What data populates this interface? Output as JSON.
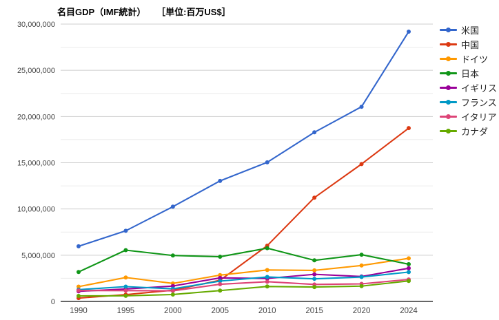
{
  "chart_data": {
    "type": "line",
    "title": "名目GDP（IMF統計）",
    "unit_label": "［単位:百万US$］",
    "xlabel": "",
    "ylabel": "",
    "categories": [
      "1990",
      "1995",
      "2000",
      "2005",
      "2010",
      "2015",
      "2020",
      "2024"
    ],
    "series": [
      {
        "name": "米国",
        "color": "#3366CC",
        "values": [
          5963140,
          7639750,
          10250950,
          13039200,
          15049010,
          18295020,
          21060450,
          29184890
        ]
      },
      {
        "name": "中国",
        "color": "#DC3912",
        "values": [
          360860,
          734550,
          1211350,
          2286460,
          6033830,
          11226190,
          14862560,
          18748010
        ]
      },
      {
        "name": "ドイツ",
        "color": "#FF9900",
        "values": [
          1598640,
          2585790,
          1947980,
          2845730,
          3399670,
          3357930,
          3887730,
          4659930
        ]
      },
      {
        "name": "日本",
        "color": "#109618",
        "values": [
          3185900,
          5545570,
          4968360,
          4834070,
          5759070,
          4444930,
          5055590,
          4026210
        ]
      },
      {
        "name": "イギリス",
        "color": "#990099",
        "values": [
          1093170,
          1345100,
          1663200,
          2543180,
          2485480,
          2932030,
          2697090,
          3587550
        ]
      },
      {
        "name": "フランス",
        "color": "#0099C6",
        "values": [
          1275300,
          1601080,
          1362250,
          2196130,
          2645190,
          2442480,
          2639090,
          3174100
        ]
      },
      {
        "name": "イタリア",
        "color": "#DD4477",
        "values": [
          1181220,
          1171200,
          1146680,
          1857480,
          2134020,
          1836640,
          1897460,
          2376510
        ]
      },
      {
        "name": "カナダ",
        "color": "#66AA00",
        "values": [
          596090,
          606030,
          744770,
          1173110,
          1617340,
          1556510,
          1655680,
          2214800
        ]
      }
    ],
    "ylim": [
      0,
      30000000
    ],
    "y_major_step": 5000000,
    "y_minor_step": 2500000,
    "y_tick_labels": [
      "0",
      "5,000,000",
      "10,000,000",
      "15,000,000",
      "20,000,000",
      "25,000,000",
      "30,000,000"
    ],
    "grid": true,
    "legend_position": "right"
  },
  "colors": {
    "grid_major": "#cccccc",
    "grid_minor": "#ebebeb",
    "axis_line": "#333333",
    "tick_text": "#444444"
  }
}
